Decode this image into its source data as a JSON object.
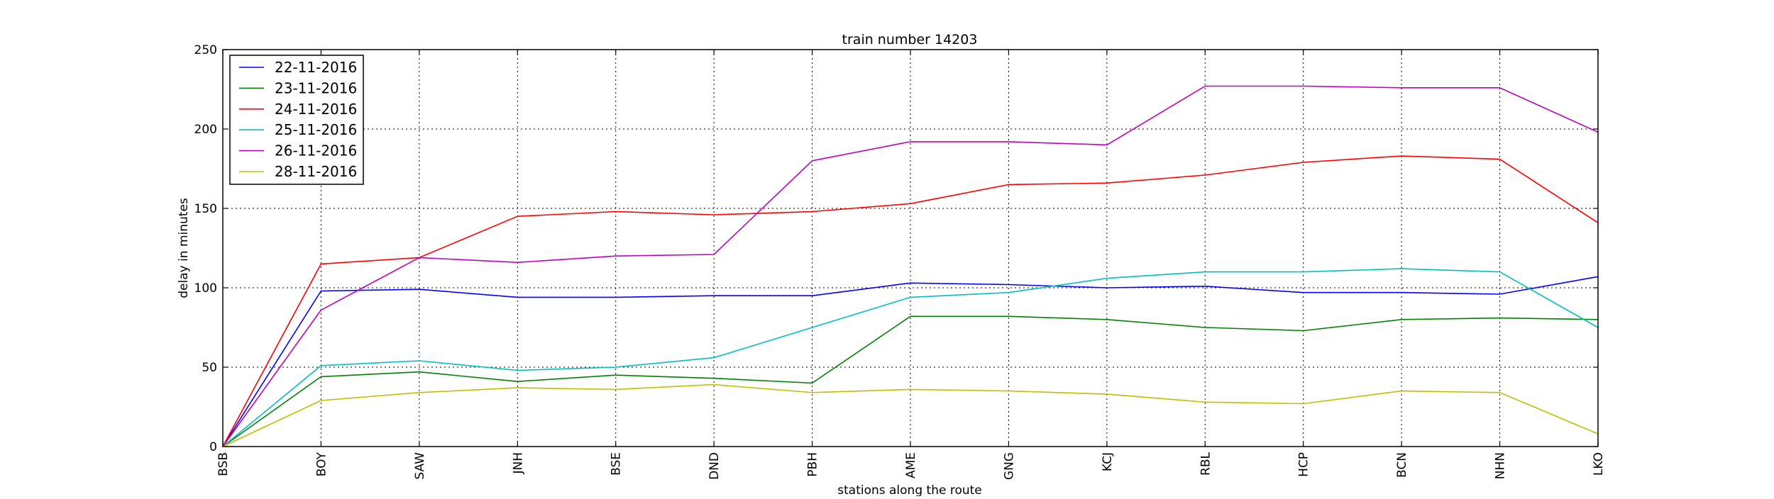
{
  "chart_data": {
    "type": "line",
    "title": "train number 14203",
    "xlabel": "stations along the route",
    "ylabel": "delay in minutes",
    "categories": [
      "BSB",
      "BOY",
      "SAW",
      "JNH",
      "BSE",
      "DND",
      "PBH",
      "AME",
      "GNG",
      "KCJ",
      "RBL",
      "HCP",
      "BCN",
      "NHN",
      "LKO"
    ],
    "ylim": [
      0,
      250
    ],
    "yticks": [
      0,
      50,
      100,
      150,
      200,
      250
    ],
    "grid": true,
    "legend_position": "top-left",
    "series": [
      {
        "name": "22-11-2016",
        "color": "#0000ff",
        "values": [
          0,
          98,
          99,
          94,
          94,
          95,
          95,
          103,
          102,
          100,
          101,
          97,
          97,
          96,
          107
        ]
      },
      {
        "name": "23-11-2016",
        "color": "#008000",
        "values": [
          0,
          44,
          47,
          41,
          45,
          43,
          40,
          82,
          82,
          80,
          75,
          73,
          80,
          81,
          80
        ]
      },
      {
        "name": "24-11-2016",
        "color": "#ff0000",
        "values": [
          0,
          115,
          119,
          145,
          148,
          146,
          148,
          153,
          165,
          166,
          171,
          179,
          183,
          181,
          141
        ]
      },
      {
        "name": "25-11-2016",
        "color": "#00bfbf",
        "values": [
          0,
          51,
          54,
          48,
          50,
          56,
          75,
          94,
          97,
          106,
          110,
          110,
          112,
          110,
          75
        ]
      },
      {
        "name": "26-11-2016",
        "color": "#bf00bf",
        "values": [
          0,
          86,
          119,
          116,
          120,
          121,
          180,
          192,
          192,
          190,
          227,
          227,
          226,
          226,
          198
        ]
      },
      {
        "name": "28-11-2016",
        "color": "#bfbf00",
        "values": [
          0,
          29,
          34,
          37,
          36,
          39,
          34,
          36,
          35,
          33,
          28,
          27,
          35,
          34,
          8
        ]
      }
    ]
  }
}
